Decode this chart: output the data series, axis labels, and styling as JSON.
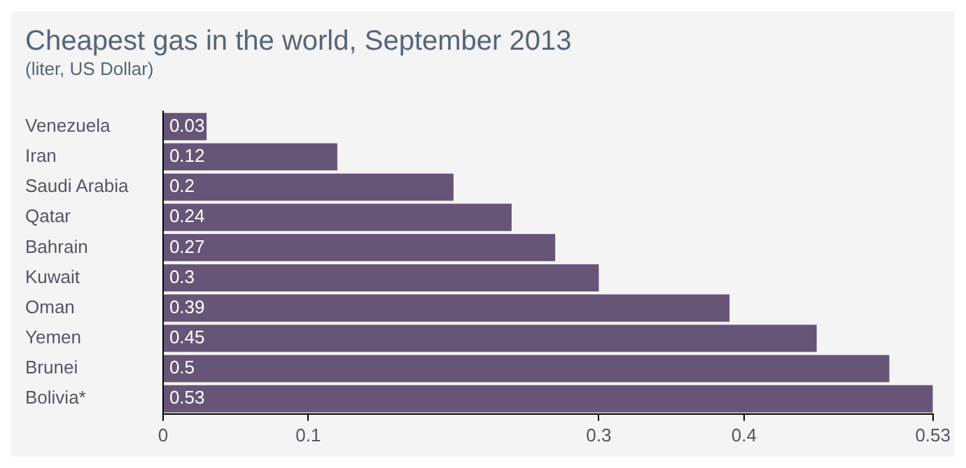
{
  "chart_data": {
    "type": "bar",
    "orientation": "horizontal",
    "title": "Cheapest gas in the world, September 2013",
    "subtitle": "(liter, US Dollar)",
    "categories": [
      "Venezuela",
      "Iran",
      "Saudi Arabia",
      "Qatar",
      "Bahrain",
      "Kuwait",
      "Oman",
      "Yemen",
      "Brunei",
      "Bolivia*"
    ],
    "values": [
      0.03,
      0.12,
      0.2,
      0.24,
      0.27,
      0.3,
      0.39,
      0.45,
      0.5,
      0.53
    ],
    "color": "#665577",
    "xlim": [
      0,
      0.53
    ],
    "xticks": [
      0,
      0.1,
      0.3,
      0.4,
      0.53
    ],
    "data_labels": true,
    "grid": false,
    "legend": false
  }
}
